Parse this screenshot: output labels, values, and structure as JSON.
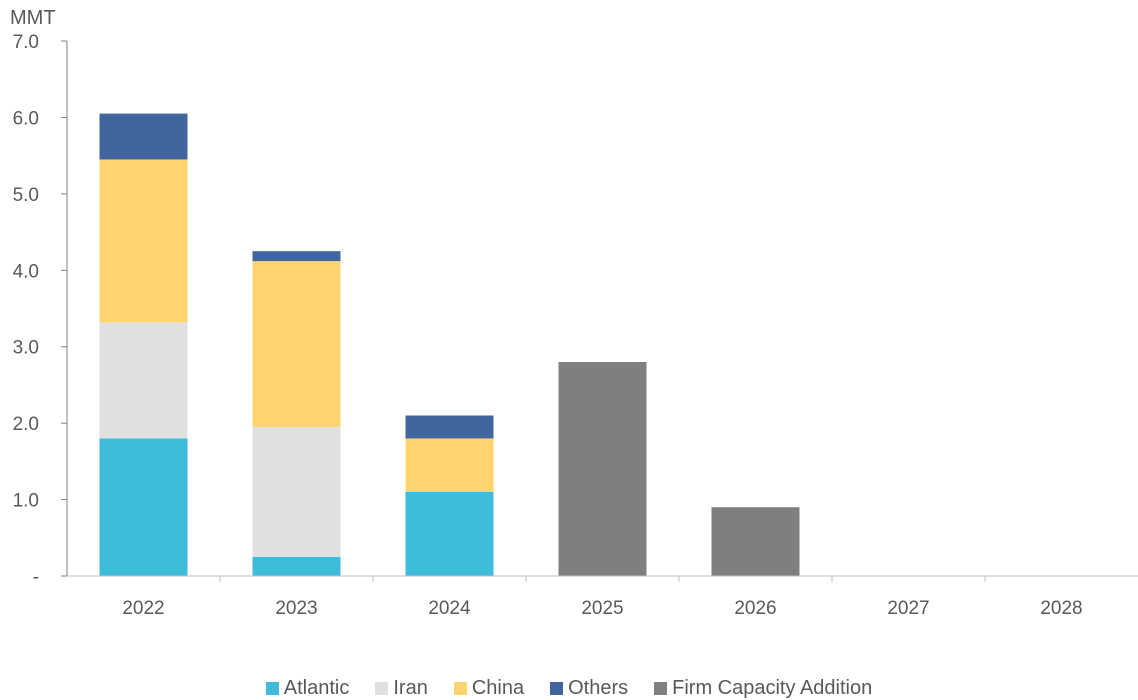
{
  "chart_data": {
    "type": "bar",
    "stacked": true,
    "title": "",
    "ylabel": "MMT",
    "xlabel": "",
    "categories": [
      "2022",
      "2023",
      "2024",
      "2025",
      "2026",
      "2027",
      "2028"
    ],
    "ylim": [
      0,
      7
    ],
    "yticks": [
      0,
      1,
      2,
      3,
      4,
      5,
      6,
      7
    ],
    "ytick_labels": [
      "-",
      "1.0",
      "2.0",
      "3.0",
      "4.0",
      "5.0",
      "6.0",
      "7.0"
    ],
    "grid": false,
    "legend_position": "bottom",
    "series": [
      {
        "name": "Atlantic",
        "color": "#3FBBDC",
        "values": [
          1.8,
          0.25,
          1.1,
          0,
          0,
          0,
          0
        ]
      },
      {
        "name": "Iran",
        "color": "#E0E0E0",
        "values": [
          1.52,
          1.7,
          0,
          0,
          0,
          0,
          0
        ]
      },
      {
        "name": "China",
        "color": "#FFD36E",
        "values": [
          2.13,
          2.17,
          0.7,
          0,
          0,
          0,
          0
        ]
      },
      {
        "name": "Others",
        "color": "#41659E",
        "values": [
          0.6,
          0.13,
          0.3,
          0,
          0,
          0,
          0
        ]
      },
      {
        "name": "Firm Capacity Addition",
        "color": "#7F7F7F",
        "values": [
          0,
          0,
          0,
          2.8,
          0.9,
          0,
          0
        ]
      }
    ]
  }
}
